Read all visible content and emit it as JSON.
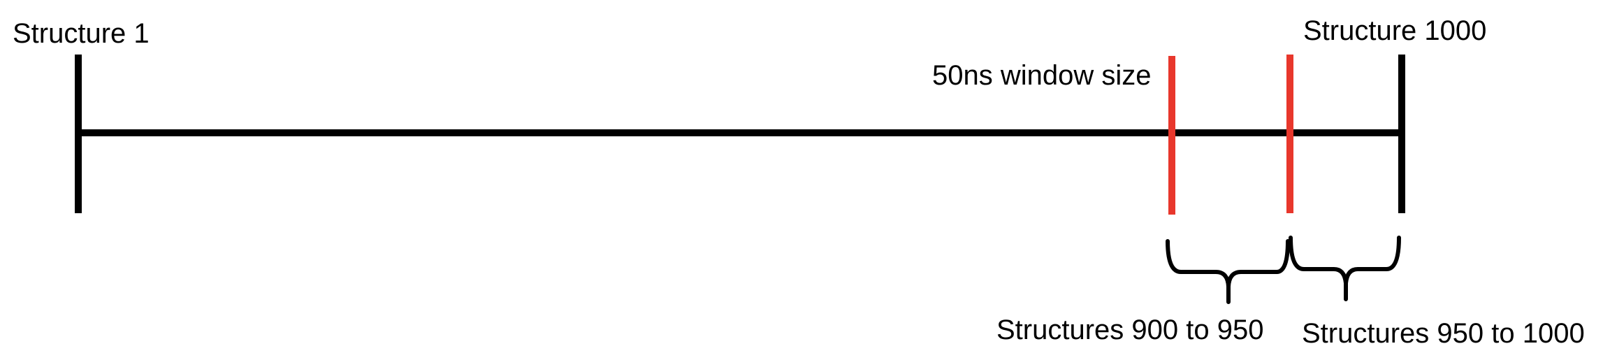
{
  "labels": {
    "start": "Structure 1",
    "end": "Structure 1000",
    "window": "50ns window size",
    "range_1": "Structures 900 to 950",
    "range_2": "Structures 950 to 1000"
  },
  "colors": {
    "timeline": "#000000",
    "window_markers": "#e8372c",
    "text": "#000000",
    "background": "#ffffff"
  }
}
